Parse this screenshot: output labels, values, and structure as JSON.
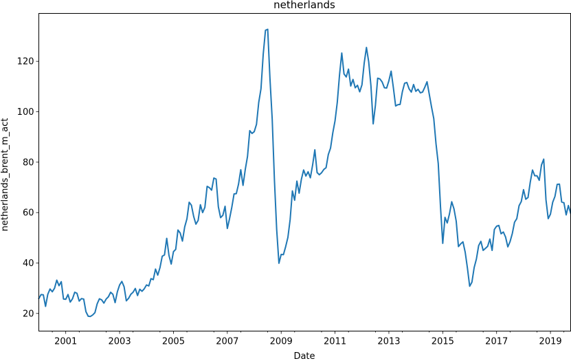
{
  "chart_data": {
    "type": "line",
    "title": "netherlands",
    "xlabel": "Date",
    "ylabel": "netherlands_brent_m_act",
    "x_tick_labels": [
      "2001",
      "2003",
      "2005",
      "2007",
      "2009",
      "2011",
      "2013",
      "2015",
      "2017",
      "2019"
    ],
    "y_ticks": [
      20,
      40,
      60,
      80,
      100,
      120
    ],
    "xlim": [
      "2000-01",
      "2019-10"
    ],
    "ylim": [
      13,
      139
    ],
    "grid": false,
    "legend": "none",
    "line_color": "#1f77b4",
    "series": [
      {
        "values": [
          [
            "2000-01",
            25.9
          ],
          [
            "2000-02",
            27.5
          ],
          [
            "2000-03",
            27.4
          ],
          [
            "2000-04",
            22.8
          ],
          [
            "2000-05",
            27.6
          ],
          [
            "2000-06",
            29.7
          ],
          [
            "2000-07",
            28.6
          ],
          [
            "2000-08",
            30.0
          ],
          [
            "2000-09",
            33.2
          ],
          [
            "2000-10",
            31.0
          ],
          [
            "2000-11",
            32.6
          ],
          [
            "2000-12",
            25.7
          ],
          [
            "2001-01",
            25.6
          ],
          [
            "2001-02",
            27.5
          ],
          [
            "2001-03",
            24.5
          ],
          [
            "2001-04",
            25.8
          ],
          [
            "2001-05",
            28.4
          ],
          [
            "2001-06",
            28.0
          ],
          [
            "2001-07",
            24.9
          ],
          [
            "2001-08",
            25.9
          ],
          [
            "2001-09",
            25.7
          ],
          [
            "2001-10",
            20.7
          ],
          [
            "2001-11",
            18.9
          ],
          [
            "2001-12",
            18.8
          ],
          [
            "2002-01",
            19.4
          ],
          [
            "2002-02",
            20.3
          ],
          [
            "2002-03",
            23.8
          ],
          [
            "2002-04",
            25.8
          ],
          [
            "2002-05",
            25.4
          ],
          [
            "2002-06",
            24.1
          ],
          [
            "2002-07",
            25.7
          ],
          [
            "2002-08",
            26.6
          ],
          [
            "2002-09",
            28.4
          ],
          [
            "2002-10",
            27.6
          ],
          [
            "2002-11",
            24.3
          ],
          [
            "2002-12",
            28.6
          ],
          [
            "2003-01",
            31.3
          ],
          [
            "2003-02",
            32.7
          ],
          [
            "2003-03",
            30.6
          ],
          [
            "2003-04",
            25.0
          ],
          [
            "2003-05",
            26.0
          ],
          [
            "2003-06",
            27.6
          ],
          [
            "2003-07",
            28.4
          ],
          [
            "2003-08",
            29.9
          ],
          [
            "2003-09",
            27.1
          ],
          [
            "2003-10",
            29.6
          ],
          [
            "2003-11",
            28.8
          ],
          [
            "2003-12",
            29.8
          ],
          [
            "2004-01",
            31.3
          ],
          [
            "2004-02",
            30.9
          ],
          [
            "2004-03",
            33.8
          ],
          [
            "2004-04",
            33.4
          ],
          [
            "2004-05",
            37.6
          ],
          [
            "2004-06",
            35.2
          ],
          [
            "2004-07",
            38.2
          ],
          [
            "2004-08",
            42.7
          ],
          [
            "2004-09",
            43.2
          ],
          [
            "2004-10",
            49.8
          ],
          [
            "2004-11",
            43.0
          ],
          [
            "2004-12",
            39.6
          ],
          [
            "2005-01",
            44.5
          ],
          [
            "2005-02",
            45.4
          ],
          [
            "2005-03",
            53.1
          ],
          [
            "2005-04",
            51.9
          ],
          [
            "2005-05",
            48.7
          ],
          [
            "2005-06",
            54.3
          ],
          [
            "2005-07",
            57.5
          ],
          [
            "2005-08",
            64.1
          ],
          [
            "2005-09",
            62.9
          ],
          [
            "2005-10",
            58.5
          ],
          [
            "2005-11",
            55.4
          ],
          [
            "2005-12",
            56.9
          ],
          [
            "2006-01",
            63.1
          ],
          [
            "2006-02",
            60.0
          ],
          [
            "2006-03",
            62.1
          ],
          [
            "2006-04",
            70.4
          ],
          [
            "2006-05",
            69.9
          ],
          [
            "2006-06",
            68.9
          ],
          [
            "2006-07",
            73.7
          ],
          [
            "2006-08",
            73.3
          ],
          [
            "2006-09",
            62.3
          ],
          [
            "2006-10",
            58.0
          ],
          [
            "2006-11",
            58.9
          ],
          [
            "2006-12",
            62.5
          ],
          [
            "2007-01",
            53.7
          ],
          [
            "2007-02",
            57.6
          ],
          [
            "2007-03",
            62.1
          ],
          [
            "2007-04",
            67.4
          ],
          [
            "2007-05",
            67.5
          ],
          [
            "2007-06",
            71.3
          ],
          [
            "2007-07",
            77.0
          ],
          [
            "2007-08",
            70.8
          ],
          [
            "2007-09",
            77.1
          ],
          [
            "2007-10",
            82.3
          ],
          [
            "2007-11",
            92.5
          ],
          [
            "2007-12",
            91.4
          ],
          [
            "2008-01",
            92.1
          ],
          [
            "2008-02",
            95.0
          ],
          [
            "2008-03",
            103.7
          ],
          [
            "2008-04",
            109.1
          ],
          [
            "2008-05",
            122.8
          ],
          [
            "2008-06",
            132.3
          ],
          [
            "2008-07",
            132.7
          ],
          [
            "2008-08",
            113.2
          ],
          [
            "2008-09",
            97.1
          ],
          [
            "2008-10",
            72.8
          ],
          [
            "2008-11",
            53.2
          ],
          [
            "2008-12",
            39.9
          ],
          [
            "2009-01",
            43.4
          ],
          [
            "2009-02",
            43.3
          ],
          [
            "2009-03",
            46.5
          ],
          [
            "2009-04",
            50.2
          ],
          [
            "2009-05",
            57.3
          ],
          [
            "2009-06",
            68.6
          ],
          [
            "2009-07",
            64.9
          ],
          [
            "2009-08",
            72.5
          ],
          [
            "2009-09",
            67.7
          ],
          [
            "2009-10",
            73.2
          ],
          [
            "2009-11",
            76.9
          ],
          [
            "2009-12",
            74.5
          ],
          [
            "2010-01",
            76.2
          ],
          [
            "2010-02",
            73.8
          ],
          [
            "2010-03",
            78.8
          ],
          [
            "2010-04",
            84.9
          ],
          [
            "2010-05",
            75.9
          ],
          [
            "2010-06",
            75.0
          ],
          [
            "2010-07",
            75.8
          ],
          [
            "2010-08",
            77.1
          ],
          [
            "2010-09",
            77.8
          ],
          [
            "2010-10",
            83.0
          ],
          [
            "2010-11",
            85.6
          ],
          [
            "2010-12",
            91.6
          ],
          [
            "2011-01",
            96.4
          ],
          [
            "2011-02",
            103.7
          ],
          [
            "2011-03",
            114.6
          ],
          [
            "2011-04",
            123.3
          ],
          [
            "2011-05",
            115.0
          ],
          [
            "2011-06",
            113.8
          ],
          [
            "2011-07",
            116.9
          ],
          [
            "2011-08",
            110.2
          ],
          [
            "2011-09",
            112.8
          ],
          [
            "2011-10",
            109.5
          ],
          [
            "2011-11",
            110.5
          ],
          [
            "2011-12",
            107.9
          ],
          [
            "2012-01",
            110.7
          ],
          [
            "2012-02",
            119.3
          ],
          [
            "2012-03",
            125.5
          ],
          [
            "2012-04",
            119.8
          ],
          [
            "2012-05",
            110.3
          ],
          [
            "2012-06",
            95.2
          ],
          [
            "2012-07",
            102.6
          ],
          [
            "2012-08",
            113.3
          ],
          [
            "2012-09",
            113.0
          ],
          [
            "2012-10",
            111.8
          ],
          [
            "2012-11",
            109.5
          ],
          [
            "2012-12",
            109.4
          ],
          [
            "2013-01",
            112.3
          ],
          [
            "2013-02",
            116.1
          ],
          [
            "2013-03",
            109.5
          ],
          [
            "2013-04",
            102.3
          ],
          [
            "2013-05",
            102.8
          ],
          [
            "2013-06",
            102.9
          ],
          [
            "2013-07",
            107.9
          ],
          [
            "2013-08",
            111.3
          ],
          [
            "2013-09",
            111.6
          ],
          [
            "2013-10",
            109.1
          ],
          [
            "2013-11",
            107.8
          ],
          [
            "2013-12",
            110.8
          ],
          [
            "2014-01",
            108.1
          ],
          [
            "2014-02",
            108.9
          ],
          [
            "2014-03",
            107.5
          ],
          [
            "2014-04",
            107.8
          ],
          [
            "2014-05",
            109.7
          ],
          [
            "2014-06",
            111.9
          ],
          [
            "2014-07",
            106.9
          ],
          [
            "2014-08",
            101.9
          ],
          [
            "2014-09",
            97.3
          ],
          [
            "2014-10",
            87.3
          ],
          [
            "2014-11",
            79.4
          ],
          [
            "2014-12",
            62.3
          ],
          [
            "2015-01",
            47.8
          ],
          [
            "2015-02",
            58.1
          ],
          [
            "2015-03",
            55.9
          ],
          [
            "2015-04",
            59.5
          ],
          [
            "2015-05",
            64.3
          ],
          [
            "2015-06",
            61.5
          ],
          [
            "2015-07",
            56.6
          ],
          [
            "2015-08",
            46.5
          ],
          [
            "2015-09",
            47.6
          ],
          [
            "2015-10",
            48.4
          ],
          [
            "2015-11",
            44.3
          ],
          [
            "2015-12",
            38.0
          ],
          [
            "2016-01",
            30.8
          ],
          [
            "2016-02",
            32.4
          ],
          [
            "2016-03",
            38.2
          ],
          [
            "2016-04",
            41.6
          ],
          [
            "2016-05",
            46.9
          ],
          [
            "2016-06",
            48.6
          ],
          [
            "2016-07",
            45.0
          ],
          [
            "2016-08",
            45.8
          ],
          [
            "2016-09",
            46.6
          ],
          [
            "2016-10",
            49.5
          ],
          [
            "2016-11",
            45.0
          ],
          [
            "2016-12",
            53.3
          ],
          [
            "2017-01",
            54.6
          ],
          [
            "2017-02",
            54.9
          ],
          [
            "2017-03",
            51.6
          ],
          [
            "2017-04",
            52.3
          ],
          [
            "2017-05",
            50.3
          ],
          [
            "2017-06",
            46.4
          ],
          [
            "2017-07",
            48.5
          ],
          [
            "2017-08",
            51.7
          ],
          [
            "2017-09",
            56.2
          ],
          [
            "2017-10",
            57.6
          ],
          [
            "2017-11",
            62.7
          ],
          [
            "2017-12",
            64.4
          ],
          [
            "2018-01",
            69.1
          ],
          [
            "2018-02",
            65.3
          ],
          [
            "2018-03",
            66.0
          ],
          [
            "2018-04",
            72.1
          ],
          [
            "2018-05",
            76.9
          ],
          [
            "2018-06",
            74.6
          ],
          [
            "2018-07",
            74.6
          ],
          [
            "2018-08",
            72.8
          ],
          [
            "2018-09",
            78.9
          ],
          [
            "2018-10",
            81.2
          ],
          [
            "2018-11",
            65.1
          ],
          [
            "2018-12",
            57.6
          ],
          [
            "2019-01",
            59.4
          ],
          [
            "2019-02",
            64.1
          ],
          [
            "2019-03",
            66.4
          ],
          [
            "2019-04",
            71.2
          ],
          [
            "2019-05",
            71.3
          ],
          [
            "2019-06",
            64.2
          ],
          [
            "2019-07",
            63.9
          ],
          [
            "2019-08",
            59.1
          ],
          [
            "2019-09",
            62.8
          ],
          [
            "2019-10",
            59.7
          ]
        ]
      }
    ]
  }
}
